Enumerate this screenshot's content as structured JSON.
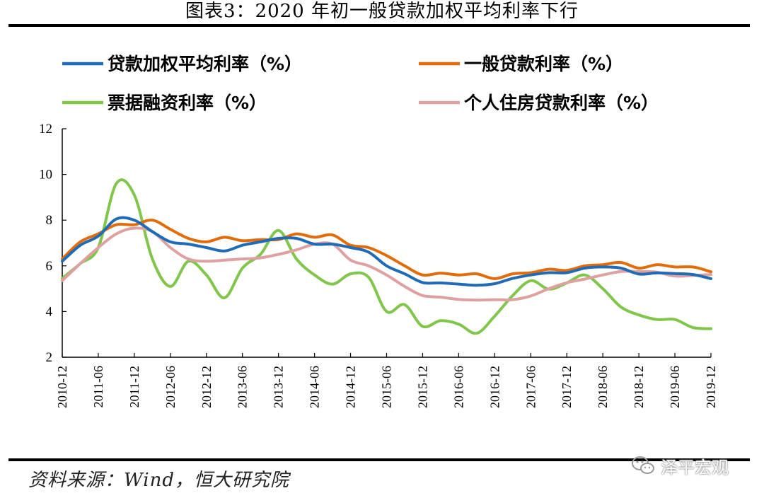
{
  "header": {
    "title": "图表3：2020 年初一般贷款加权平均利率下行"
  },
  "footer": {
    "source": "资料来源：Wind，恒大研究院",
    "watermark": "泽平宏观"
  },
  "colors": {
    "blue": "#1f6bb8",
    "orange": "#e36c0a",
    "green": "#7fc64b",
    "pink": "#dea0a0"
  },
  "chart_data": {
    "type": "line",
    "title": "",
    "xlabel": "",
    "ylabel": "",
    "ylim": [
      2,
      12
    ],
    "yticks": [
      2,
      4,
      6,
      8,
      10,
      12
    ],
    "grid": false,
    "legend_placement": "top",
    "xlim": [
      "2010-12",
      "2019-12"
    ],
    "x_tick_labels": [
      "2010-12",
      "2011-06",
      "2011-12",
      "2012-06",
      "2012-12",
      "2013-06",
      "2013-12",
      "2014-06",
      "2014-12",
      "2015-06",
      "2015-12",
      "2016-06",
      "2016-12",
      "2017-06",
      "2017-12",
      "2018-06",
      "2018-12",
      "2019-06",
      "2019-12"
    ],
    "series": [
      {
        "name": "贷款加权平均利率（%）",
        "color": "#1f6bb8",
        "points": [
          [
            "2010-12",
            6.2
          ],
          [
            "2011-03",
            6.9
          ],
          [
            "2011-06",
            7.3
          ],
          [
            "2011-09",
            8.05
          ],
          [
            "2011-12",
            8.0
          ],
          [
            "2012-03",
            7.5
          ],
          [
            "2012-06",
            7.05
          ],
          [
            "2012-09",
            6.95
          ],
          [
            "2012-12",
            6.8
          ],
          [
            "2013-03",
            6.65
          ],
          [
            "2013-06",
            6.9
          ],
          [
            "2013-09",
            7.05
          ],
          [
            "2013-12",
            7.2
          ],
          [
            "2014-03",
            7.2
          ],
          [
            "2014-06",
            6.95
          ],
          [
            "2014-09",
            6.95
          ],
          [
            "2014-12",
            6.8
          ],
          [
            "2015-03",
            6.6
          ],
          [
            "2015-06",
            6.0
          ],
          [
            "2015-09",
            5.65
          ],
          [
            "2015-12",
            5.27
          ],
          [
            "2016-03",
            5.25
          ],
          [
            "2016-06",
            5.2
          ],
          [
            "2016-09",
            5.15
          ],
          [
            "2016-12",
            5.22
          ],
          [
            "2017-03",
            5.45
          ],
          [
            "2017-06",
            5.6
          ],
          [
            "2017-09",
            5.7
          ],
          [
            "2017-12",
            5.7
          ],
          [
            "2018-03",
            5.9
          ],
          [
            "2018-06",
            5.95
          ],
          [
            "2018-09",
            5.9
          ],
          [
            "2018-12",
            5.64
          ],
          [
            "2019-03",
            5.69
          ],
          [
            "2019-06",
            5.66
          ],
          [
            "2019-09",
            5.62
          ],
          [
            "2019-12",
            5.44
          ]
        ]
      },
      {
        "name": "一般贷款利率（%）",
        "color": "#e36c0a",
        "points": [
          [
            "2010-12",
            6.3
          ],
          [
            "2011-03",
            7.05
          ],
          [
            "2011-06",
            7.4
          ],
          [
            "2011-09",
            7.8
          ],
          [
            "2011-12",
            7.8
          ],
          [
            "2012-03",
            8.0
          ],
          [
            "2012-06",
            7.6
          ],
          [
            "2012-09",
            7.2
          ],
          [
            "2012-12",
            7.05
          ],
          [
            "2013-03",
            7.25
          ],
          [
            "2013-06",
            7.1
          ],
          [
            "2013-09",
            7.15
          ],
          [
            "2013-12",
            7.15
          ],
          [
            "2014-03",
            7.4
          ],
          [
            "2014-06",
            7.25
          ],
          [
            "2014-09",
            7.35
          ],
          [
            "2014-12",
            6.9
          ],
          [
            "2015-03",
            6.8
          ],
          [
            "2015-06",
            6.45
          ],
          [
            "2015-09",
            6.0
          ],
          [
            "2015-12",
            5.6
          ],
          [
            "2016-03",
            5.68
          ],
          [
            "2016-06",
            5.6
          ],
          [
            "2016-09",
            5.65
          ],
          [
            "2016-12",
            5.44
          ],
          [
            "2017-03",
            5.65
          ],
          [
            "2017-06",
            5.7
          ],
          [
            "2017-09",
            5.85
          ],
          [
            "2017-12",
            5.8
          ],
          [
            "2018-03",
            6.0
          ],
          [
            "2018-06",
            6.05
          ],
          [
            "2018-09",
            6.15
          ],
          [
            "2018-12",
            5.9
          ],
          [
            "2019-03",
            6.05
          ],
          [
            "2019-06",
            5.95
          ],
          [
            "2019-09",
            5.95
          ],
          [
            "2019-12",
            5.74
          ]
        ]
      },
      {
        "name": "票据融资利率（%）",
        "color": "#7fc64b",
        "points": [
          [
            "2010-12",
            5.45
          ],
          [
            "2011-03",
            6.1
          ],
          [
            "2011-06",
            6.8
          ],
          [
            "2011-09",
            9.6
          ],
          [
            "2011-12",
            9.1
          ],
          [
            "2012-03",
            6.3
          ],
          [
            "2012-06",
            5.1
          ],
          [
            "2012-09",
            6.2
          ],
          [
            "2012-12",
            5.6
          ],
          [
            "2013-03",
            4.6
          ],
          [
            "2013-06",
            5.9
          ],
          [
            "2013-09",
            6.5
          ],
          [
            "2013-12",
            7.55
          ],
          [
            "2014-03",
            6.3
          ],
          [
            "2014-06",
            5.6
          ],
          [
            "2014-09",
            5.2
          ],
          [
            "2014-12",
            5.65
          ],
          [
            "2015-03",
            5.5
          ],
          [
            "2015-06",
            4.0
          ],
          [
            "2015-09",
            4.3
          ],
          [
            "2015-12",
            3.35
          ],
          [
            "2016-03",
            3.6
          ],
          [
            "2016-06",
            3.45
          ],
          [
            "2016-09",
            3.05
          ],
          [
            "2016-12",
            3.8
          ],
          [
            "2017-03",
            4.7
          ],
          [
            "2017-06",
            5.35
          ],
          [
            "2017-09",
            4.98
          ],
          [
            "2017-12",
            5.25
          ],
          [
            "2018-03",
            5.6
          ],
          [
            "2018-06",
            5.0
          ],
          [
            "2018-09",
            4.2
          ],
          [
            "2018-12",
            3.85
          ],
          [
            "2019-03",
            3.65
          ],
          [
            "2019-06",
            3.65
          ],
          [
            "2019-09",
            3.3
          ],
          [
            "2019-12",
            3.25
          ]
        ]
      },
      {
        "name": "个人住房贷款利率（%）",
        "color": "#dea0a0",
        "points": [
          [
            "2010-12",
            5.35
          ],
          [
            "2011-03",
            6.1
          ],
          [
            "2011-06",
            6.8
          ],
          [
            "2011-09",
            7.4
          ],
          [
            "2011-12",
            7.65
          ],
          [
            "2012-03",
            7.5
          ],
          [
            "2012-06",
            6.8
          ],
          [
            "2012-09",
            6.3
          ],
          [
            "2012-12",
            6.2
          ],
          [
            "2013-03",
            6.25
          ],
          [
            "2013-06",
            6.3
          ],
          [
            "2013-09",
            6.35
          ],
          [
            "2013-12",
            6.5
          ],
          [
            "2014-03",
            6.7
          ],
          [
            "2014-06",
            6.95
          ],
          [
            "2014-09",
            6.95
          ],
          [
            "2014-12",
            6.25
          ],
          [
            "2015-03",
            6.0
          ],
          [
            "2015-06",
            5.6
          ],
          [
            "2015-09",
            5.1
          ],
          [
            "2015-12",
            4.7
          ],
          [
            "2016-03",
            4.63
          ],
          [
            "2016-06",
            4.53
          ],
          [
            "2016-09",
            4.5
          ],
          [
            "2016-12",
            4.52
          ],
          [
            "2017-03",
            4.52
          ],
          [
            "2017-06",
            4.68
          ],
          [
            "2017-09",
            5.0
          ],
          [
            "2017-12",
            5.26
          ],
          [
            "2018-03",
            5.42
          ],
          [
            "2018-06",
            5.6
          ],
          [
            "2018-09",
            5.75
          ],
          [
            "2018-12",
            5.75
          ],
          [
            "2019-03",
            5.72
          ],
          [
            "2019-06",
            5.55
          ],
          [
            "2019-09",
            5.58
          ],
          [
            "2019-12",
            5.62
          ]
        ]
      }
    ]
  }
}
